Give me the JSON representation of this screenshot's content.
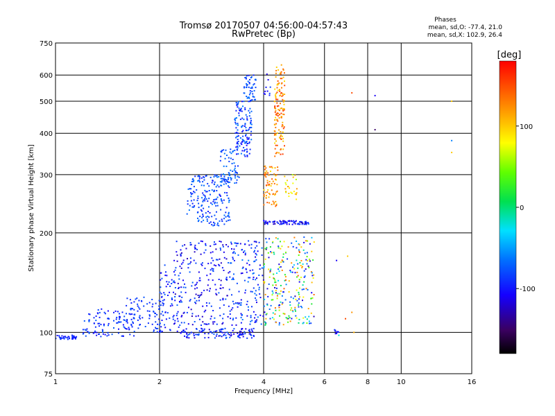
{
  "chart_data": {
    "type": "scatter",
    "title": "Tromsø 20170507 04:56:00-04:57:43",
    "subtitle": "RwPretec (Bp)",
    "xlabel": "Frequency [MHz]",
    "ylabel": "Stationary phase Virtual Height [km]",
    "x_scale": "log",
    "y_scale": "log",
    "xlim": [
      1,
      16
    ],
    "ylim": [
      75,
      750
    ],
    "x_ticks": [
      1,
      2,
      4,
      6,
      8,
      10,
      16
    ],
    "x_tick_labels": [
      "1",
      "2",
      "4",
      "6",
      "8",
      "10",
      "16"
    ],
    "y_ticks": [
      75,
      100,
      200,
      300,
      400,
      500,
      600,
      750
    ],
    "y_tick_labels": [
      "75",
      "100",
      "200",
      "300",
      "400",
      "500",
      "600",
      "750"
    ],
    "grid": true,
    "stats": {
      "heading": "Phases",
      "line_o": "mean, sd,O: -77.4, 21.0",
      "line_x": "mean, sd,X: 102.9, 26.4"
    },
    "colorbar": {
      "label": "[deg]",
      "range": [
        -180,
        180
      ],
      "ticks": [
        100,
        0,
        -100
      ],
      "tick_labels": [
        "100",
        "0",
        "-100"
      ]
    },
    "clusters": [
      {
        "x": [
          1.0,
          1.15
        ],
        "y": [
          95,
          98
        ],
        "phase": [
          -110,
          -80
        ],
        "n": 40
      },
      {
        "x": [
          1.2,
          1.7
        ],
        "y": [
          97,
          118
        ],
        "phase": [
          -110,
          -70
        ],
        "n": 110
      },
      {
        "x": [
          1.6,
          2.05
        ],
        "y": [
          100,
          128
        ],
        "phase": [
          -100,
          -75
        ],
        "n": 80
      },
      {
        "x": [
          2.0,
          2.3
        ],
        "y": [
          100,
          160
        ],
        "phase": [
          -110,
          -70
        ],
        "n": 70
      },
      {
        "x": [
          2.3,
          3.8
        ],
        "y": [
          96,
          103
        ],
        "phase": [
          -120,
          -70
        ],
        "n": 120
      },
      {
        "x": [
          2.2,
          3.2
        ],
        "y": [
          105,
          190
        ],
        "phase": [
          -130,
          -70
        ],
        "n": 220
      },
      {
        "x": [
          3.2,
          4.0
        ],
        "y": [
          105,
          190
        ],
        "phase": [
          -120,
          -60
        ],
        "n": 150
      },
      {
        "x": [
          2.4,
          3.2
        ],
        "y": [
          210,
          300
        ],
        "phase": [
          -100,
          -60
        ],
        "n": 200
      },
      {
        "x": [
          3.0,
          3.4
        ],
        "y": [
          280,
          360
        ],
        "phase": [
          -90,
          -60
        ],
        "n": 60
      },
      {
        "x": [
          3.3,
          3.7
        ],
        "y": [
          340,
          500
        ],
        "phase": [
          -110,
          -60
        ],
        "n": 130
      },
      {
        "x": [
          3.5,
          3.8
        ],
        "y": [
          500,
          600
        ],
        "phase": [
          -100,
          -60
        ],
        "n": 50
      },
      {
        "x": [
          4.0,
          4.2
        ],
        "y": [
          520,
          610
        ],
        "phase": [
          -120,
          -80
        ],
        "n": 10
      },
      {
        "x": [
          4.0,
          5.6
        ],
        "y": [
          105,
          195
        ],
        "phase": [
          -130,
          150
        ],
        "n": 260
      },
      {
        "x": [
          4.0,
          5.4
        ],
        "y": [
          212,
          218
        ],
        "phase": [
          -130,
          -80
        ],
        "n": 80
      },
      {
        "x": [
          4.0,
          4.4
        ],
        "y": [
          240,
          320
        ],
        "phase": [
          90,
          150
        ],
        "n": 70
      },
      {
        "x": [
          4.3,
          4.6
        ],
        "y": [
          340,
          650
        ],
        "phase": [
          90,
          160
        ],
        "n": 140
      },
      {
        "x": [
          4.6,
          5.0
        ],
        "y": [
          250,
          300
        ],
        "phase": [
          60,
          120
        ],
        "n": 25
      },
      {
        "x": [
          6.4,
          6.6
        ],
        "y": [
          99,
          102
        ],
        "phase": [
          -120,
          -90
        ],
        "n": 10
      }
    ],
    "isolated_points": [
      {
        "x": 7.2,
        "y": 530,
        "phase": 150
      },
      {
        "x": 8.4,
        "y": 520,
        "phase": -110
      },
      {
        "x": 8.4,
        "y": 410,
        "phase": -150
      },
      {
        "x": 14.0,
        "y": 500,
        "phase": 100
      },
      {
        "x": 14.0,
        "y": 380,
        "phase": -60
      },
      {
        "x": 14.0,
        "y": 350,
        "phase": 100
      },
      {
        "x": 6.5,
        "y": 165,
        "phase": -110
      },
      {
        "x": 7.0,
        "y": 170,
        "phase": 100
      },
      {
        "x": 7.2,
        "y": 115,
        "phase": 120
      },
      {
        "x": 6.9,
        "y": 110,
        "phase": 150
      },
      {
        "x": 7.3,
        "y": 100,
        "phase": 110
      },
      {
        "x": 6.6,
        "y": 98,
        "phase": -20
      }
    ]
  }
}
